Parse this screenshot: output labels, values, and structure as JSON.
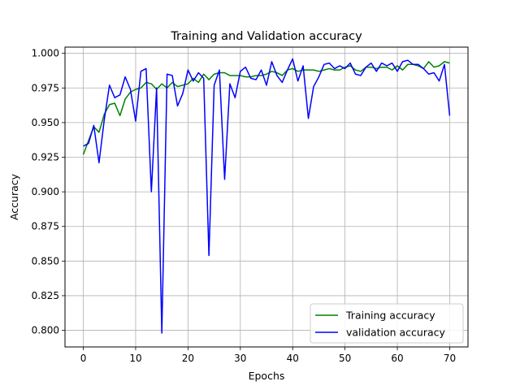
{
  "chart_data": {
    "type": "line",
    "title": "Training and Validation accuracy",
    "xlabel": "Epochs",
    "ylabel": "Accuracy",
    "xlim": [
      -3.5,
      73.5
    ],
    "ylim": [
      0.788,
      1.0045
    ],
    "xticks": [
      0,
      10,
      20,
      30,
      40,
      50,
      60,
      70
    ],
    "yticks": [
      0.8,
      0.825,
      0.85,
      0.875,
      0.9,
      0.925,
      0.95,
      0.975,
      1.0
    ],
    "ytick_labels": [
      "0.800",
      "0.825",
      "0.850",
      "0.875",
      "0.900",
      "0.925",
      "0.950",
      "0.975",
      "1.000"
    ],
    "grid": true,
    "legend_position": "lower right",
    "series": [
      {
        "name": "Training accuracy",
        "color": "#008000",
        "x": [
          0,
          1,
          2,
          3,
          4,
          5,
          6,
          7,
          8,
          9,
          10,
          11,
          12,
          13,
          14,
          15,
          16,
          17,
          18,
          19,
          20,
          21,
          22,
          23,
          24,
          25,
          26,
          27,
          28,
          29,
          30,
          31,
          32,
          33,
          34,
          35,
          36,
          37,
          38,
          39,
          40,
          41,
          42,
          43,
          44,
          45,
          46,
          47,
          48,
          49,
          50,
          51,
          52,
          53,
          54,
          55,
          56,
          57,
          58,
          59,
          60,
          61,
          62,
          63,
          64,
          65,
          66,
          67,
          68,
          69,
          70
        ],
        "values": [
          0.927,
          0.937,
          0.947,
          0.943,
          0.956,
          0.963,
          0.964,
          0.955,
          0.967,
          0.972,
          0.974,
          0.975,
          0.979,
          0.978,
          0.974,
          0.978,
          0.975,
          0.979,
          0.976,
          0.977,
          0.978,
          0.982,
          0.979,
          0.985,
          0.981,
          0.985,
          0.986,
          0.986,
          0.984,
          0.984,
          0.984,
          0.983,
          0.983,
          0.984,
          0.984,
          0.985,
          0.987,
          0.986,
          0.984,
          0.988,
          0.989,
          0.987,
          0.988,
          0.988,
          0.988,
          0.987,
          0.988,
          0.989,
          0.988,
          0.988,
          0.99,
          0.991,
          0.988,
          0.987,
          0.99,
          0.99,
          0.989,
          0.99,
          0.99,
          0.988,
          0.991,
          0.988,
          0.992,
          0.992,
          0.991,
          0.989,
          0.994,
          0.99,
          0.991,
          0.994,
          0.993
        ]
      },
      {
        "name": "validation accuracy",
        "color": "#0000ff",
        "x": [
          0,
          1,
          2,
          3,
          4,
          5,
          6,
          7,
          8,
          9,
          10,
          11,
          12,
          13,
          14,
          15,
          16,
          17,
          18,
          19,
          20,
          21,
          22,
          23,
          24,
          25,
          26,
          27,
          28,
          29,
          30,
          31,
          32,
          33,
          34,
          35,
          36,
          37,
          38,
          39,
          40,
          41,
          42,
          43,
          44,
          45,
          46,
          47,
          48,
          49,
          50,
          51,
          52,
          53,
          54,
          55,
          56,
          57,
          58,
          59,
          60,
          61,
          62,
          63,
          64,
          65,
          66,
          67,
          68,
          69,
          70
        ],
        "values": [
          0.933,
          0.935,
          0.948,
          0.921,
          0.952,
          0.977,
          0.968,
          0.97,
          0.983,
          0.974,
          0.951,
          0.987,
          0.989,
          0.9,
          0.975,
          0.798,
          0.985,
          0.984,
          0.962,
          0.971,
          0.988,
          0.98,
          0.986,
          0.982,
          0.854,
          0.977,
          0.988,
          0.909,
          0.978,
          0.968,
          0.987,
          0.99,
          0.982,
          0.981,
          0.988,
          0.977,
          0.994,
          0.984,
          0.979,
          0.988,
          0.996,
          0.98,
          0.991,
          0.953,
          0.976,
          0.983,
          0.992,
          0.993,
          0.989,
          0.991,
          0.989,
          0.993,
          0.985,
          0.984,
          0.99,
          0.993,
          0.987,
          0.993,
          0.991,
          0.993,
          0.987,
          0.994,
          0.995,
          0.992,
          0.992,
          0.989,
          0.985,
          0.986,
          0.98,
          0.992,
          0.955
        ]
      }
    ]
  }
}
